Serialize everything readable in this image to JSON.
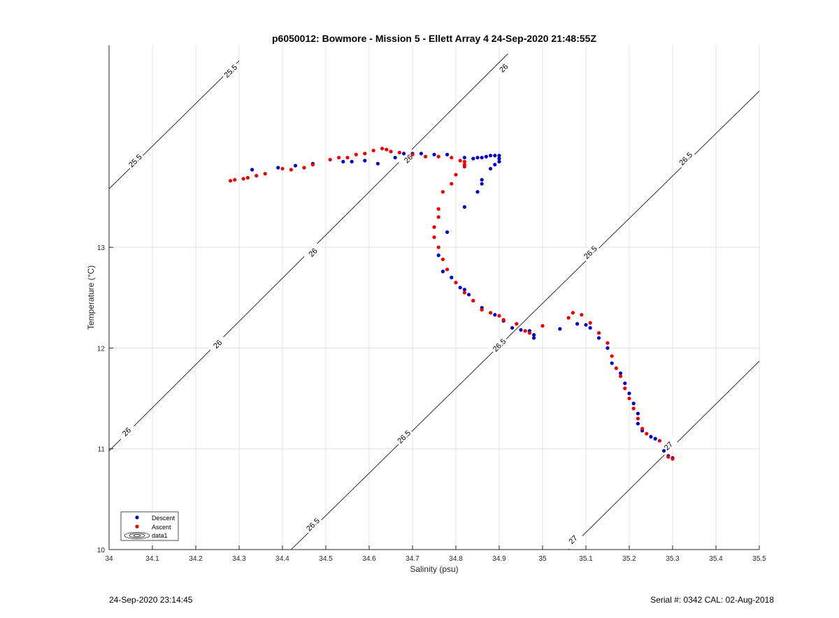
{
  "chart_data": {
    "type": "scatter",
    "title": "p6050012: Bowmore - Mission 5 - Ellett Array 4 24-Sep-2020 21:48:55Z",
    "xlabel": "Salinity (psu)",
    "ylabel": "Temperature (°C)",
    "xlim": [
      34,
      35.5
    ],
    "ylim": [
      10,
      14.95
    ],
    "x_ticks": [
      "34",
      "34.1",
      "34.2",
      "34.3",
      "34.4",
      "34.5",
      "34.6",
      "34.7",
      "34.8",
      "34.9",
      "35",
      "35.1",
      "35.2",
      "35.3",
      "35.4",
      "35.5"
    ],
    "y_ticks": [
      "10",
      "11",
      "12",
      "13"
    ],
    "grid": true,
    "legend_position": "bottom-left",
    "colors": {
      "descent": "#0000cc",
      "ascent": "#ee0000",
      "contour": "#000000",
      "grid": "#e3e3e3"
    },
    "series": [
      {
        "name": "Descent",
        "color": "#0000cc",
        "points": [
          [
            34.33,
            13.77
          ],
          [
            34.39,
            13.79
          ],
          [
            34.43,
            13.81
          ],
          [
            34.47,
            13.83
          ],
          [
            34.54,
            13.85
          ],
          [
            34.56,
            13.85
          ],
          [
            34.59,
            13.86
          ],
          [
            34.62,
            13.83
          ],
          [
            34.66,
            13.89
          ],
          [
            34.68,
            13.93
          ],
          [
            34.7,
            13.93
          ],
          [
            34.72,
            13.93
          ],
          [
            34.75,
            13.92
          ],
          [
            34.78,
            13.92
          ],
          [
            34.82,
            13.89
          ],
          [
            34.84,
            13.88
          ],
          [
            34.85,
            13.89
          ],
          [
            34.86,
            13.89
          ],
          [
            34.87,
            13.9
          ],
          [
            34.88,
            13.91
          ],
          [
            34.89,
            13.91
          ],
          [
            34.9,
            13.91
          ],
          [
            34.9,
            13.88
          ],
          [
            34.9,
            13.85
          ],
          [
            34.89,
            13.82
          ],
          [
            34.88,
            13.78
          ],
          [
            34.86,
            13.67
          ],
          [
            34.86,
            13.63
          ],
          [
            34.85,
            13.55
          ],
          [
            34.82,
            13.4
          ],
          [
            34.78,
            13.15
          ],
          [
            34.76,
            12.92
          ],
          [
            34.77,
            12.76
          ],
          [
            34.79,
            12.7
          ],
          [
            34.81,
            12.6
          ],
          [
            34.82,
            12.58
          ],
          [
            34.83,
            12.53
          ],
          [
            34.84,
            12.47
          ],
          [
            34.86,
            12.4
          ],
          [
            34.89,
            12.33
          ],
          [
            34.91,
            12.27
          ],
          [
            34.93,
            12.2
          ],
          [
            34.95,
            12.18
          ],
          [
            34.97,
            12.17
          ],
          [
            34.98,
            12.13
          ],
          [
            34.98,
            12.1
          ],
          [
            35.04,
            12.19
          ],
          [
            35.08,
            12.24
          ],
          [
            35.1,
            12.23
          ],
          [
            35.11,
            12.2
          ],
          [
            35.13,
            12.1
          ],
          [
            35.15,
            12.0
          ],
          [
            35.16,
            11.85
          ],
          [
            35.18,
            11.75
          ],
          [
            35.19,
            11.65
          ],
          [
            35.2,
            11.55
          ],
          [
            35.21,
            11.45
          ],
          [
            35.22,
            11.35
          ],
          [
            35.22,
            11.25
          ],
          [
            35.23,
            11.18
          ],
          [
            35.25,
            11.12
          ],
          [
            35.26,
            11.1
          ],
          [
            35.28,
            10.98
          ],
          [
            35.29,
            10.93
          ],
          [
            35.3,
            10.91
          ]
        ]
      },
      {
        "name": "Ascent",
        "color": "#ee0000",
        "points": [
          [
            34.28,
            13.66
          ],
          [
            34.29,
            13.67
          ],
          [
            34.31,
            13.68
          ],
          [
            34.32,
            13.69
          ],
          [
            34.34,
            13.71
          ],
          [
            34.36,
            13.73
          ],
          [
            34.4,
            13.78
          ],
          [
            34.42,
            13.77
          ],
          [
            34.45,
            13.79
          ],
          [
            34.47,
            13.82
          ],
          [
            34.51,
            13.87
          ],
          [
            34.53,
            13.89
          ],
          [
            34.55,
            13.89
          ],
          [
            34.57,
            13.92
          ],
          [
            34.59,
            13.93
          ],
          [
            34.61,
            13.96
          ],
          [
            34.63,
            13.98
          ],
          [
            34.64,
            13.97
          ],
          [
            34.65,
            13.95
          ],
          [
            34.67,
            13.94
          ],
          [
            34.7,
            13.92
          ],
          [
            34.73,
            13.9
          ],
          [
            34.76,
            13.9
          ],
          [
            34.79,
            13.89
          ],
          [
            34.81,
            13.86
          ],
          [
            34.82,
            13.85
          ],
          [
            34.82,
            13.82
          ],
          [
            34.82,
            13.8
          ],
          [
            34.8,
            13.72
          ],
          [
            34.79,
            13.63
          ],
          [
            34.77,
            13.55
          ],
          [
            34.76,
            13.38
          ],
          [
            34.76,
            13.3
          ],
          [
            34.75,
            13.2
          ],
          [
            34.75,
            13.1
          ],
          [
            34.76,
            13.0
          ],
          [
            34.77,
            12.88
          ],
          [
            34.78,
            12.78
          ],
          [
            34.8,
            12.65
          ],
          [
            34.82,
            12.55
          ],
          [
            34.84,
            12.47
          ],
          [
            34.86,
            12.38
          ],
          [
            34.88,
            12.35
          ],
          [
            34.9,
            12.32
          ],
          [
            34.91,
            12.28
          ],
          [
            34.94,
            12.24
          ],
          [
            34.96,
            12.17
          ],
          [
            34.97,
            12.15
          ],
          [
            35.0,
            12.22
          ],
          [
            35.06,
            12.3
          ],
          [
            35.07,
            12.35
          ],
          [
            35.09,
            12.33
          ],
          [
            35.11,
            12.25
          ],
          [
            35.13,
            12.15
          ],
          [
            35.15,
            12.05
          ],
          [
            35.16,
            11.92
          ],
          [
            35.17,
            11.8
          ],
          [
            35.18,
            11.72
          ],
          [
            35.19,
            11.6
          ],
          [
            35.2,
            11.5
          ],
          [
            35.21,
            11.4
          ],
          [
            35.22,
            11.3
          ],
          [
            35.23,
            11.2
          ],
          [
            35.24,
            11.15
          ],
          [
            35.27,
            11.08
          ],
          [
            35.29,
            10.92
          ],
          [
            35.3,
            10.9
          ]
        ]
      }
    ],
    "legend_entries": [
      "Descent",
      "Ascent",
      "data1"
    ],
    "contour_lines": [
      {
        "label": "25.5",
        "points": [
          [
            34.0,
            13.58
          ],
          [
            34.3,
            14.85
          ]
        ],
        "label_at": [
          [
            34.06,
            13.86
          ],
          [
            34.28,
            14.75
          ]
        ]
      },
      {
        "label": "26",
        "points": [
          [
            34.0,
            10.98
          ],
          [
            34.92,
            14.92
          ]
        ],
        "label_at": [
          [
            34.04,
            11.17
          ],
          [
            34.25,
            12.04
          ],
          [
            34.47,
            12.95
          ],
          [
            34.69,
            13.88
          ],
          [
            34.91,
            14.78
          ]
        ]
      },
      {
        "label": "26.5",
        "points": [
          [
            34.42,
            10.0
          ],
          [
            35.5,
            14.55
          ]
        ],
        "label_at": [
          [
            34.47,
            10.25
          ],
          [
            34.68,
            11.12
          ],
          [
            34.9,
            12.03
          ],
          [
            35.11,
            12.95
          ],
          [
            35.33,
            13.88
          ]
        ]
      },
      {
        "label": "27",
        "points": [
          [
            35.06,
            10.0
          ],
          [
            35.5,
            11.87
          ]
        ],
        "label_at": [
          [
            35.07,
            10.1
          ],
          [
            35.29,
            11.03
          ]
        ]
      }
    ]
  },
  "footer": {
    "left": "24-Sep-2020 23:14:45",
    "right": "Serial #: 0342  CAL: 02-Aug-2018"
  }
}
